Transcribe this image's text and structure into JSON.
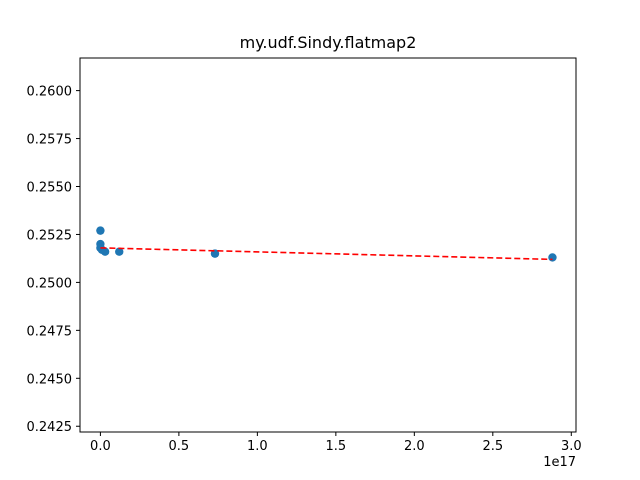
{
  "chart_data": {
    "type": "scatter",
    "title": "my.udf.Sindy.flatmap2",
    "xlabel": "",
    "ylabel": "",
    "x_offset_label": "1e17",
    "xlim": [
      -0.13,
      3.03
    ],
    "ylim": [
      0.2422,
      0.2617
    ],
    "x_ticks": [
      0.0,
      0.5,
      1.0,
      1.5,
      2.0,
      2.5,
      3.0
    ],
    "x_tick_labels": [
      "0.0",
      "0.5",
      "1.0",
      "1.5",
      "2.0",
      "2.5",
      "3.0"
    ],
    "y_ticks": [
      0.2425,
      0.245,
      0.2475,
      0.25,
      0.2525,
      0.255,
      0.2575,
      0.26
    ],
    "y_tick_labels": [
      "0.2425",
      "0.2450",
      "0.2475",
      "0.2500",
      "0.2525",
      "0.2550",
      "0.2575",
      "0.2600"
    ],
    "grid": false,
    "points_x_unit": "1e17",
    "points": [
      {
        "x": 0.0,
        "y": 0.2527
      },
      {
        "x": 0.0,
        "y": 0.252
      },
      {
        "x": 0.0,
        "y": 0.2518
      },
      {
        "x": 0.01,
        "y": 0.2517
      },
      {
        "x": 0.03,
        "y": 0.2516
      },
      {
        "x": 0.12,
        "y": 0.2516
      },
      {
        "x": 0.73,
        "y": 0.2515
      },
      {
        "x": 2.88,
        "y": 0.2513
      }
    ],
    "trendline": {
      "style": "dashed",
      "color": "#ff0000",
      "x": [
        0.0,
        2.88
      ],
      "y": [
        0.2518,
        0.2512
      ]
    },
    "point_color": "#1f77b4"
  }
}
